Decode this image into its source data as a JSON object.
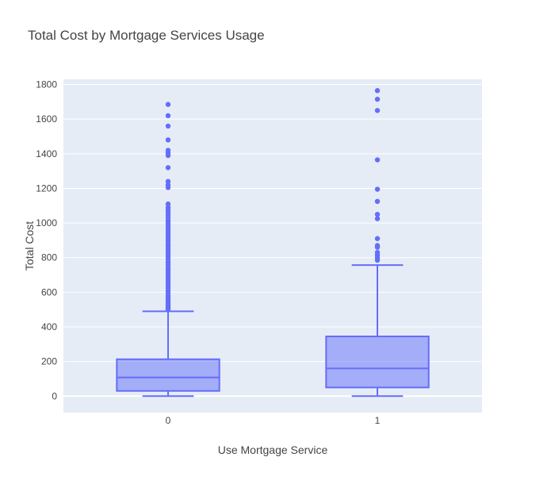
{
  "chart_data": {
    "type": "box",
    "title": "Total Cost by Mortgage Services Usage",
    "xlabel": "Use Mortgage Service",
    "ylabel": "Total Cost",
    "categories": [
      "0",
      "1"
    ],
    "ylim": [
      -95,
      1830
    ],
    "yticks": [
      0,
      200,
      400,
      600,
      800,
      1000,
      1200,
      1400,
      1600,
      1800
    ],
    "ytick_labels": [
      "0",
      "200",
      "400",
      "600",
      "800",
      "1000",
      "1200",
      "1400",
      "1600",
      "1800"
    ],
    "grid": true,
    "legend": "none",
    "series": [
      {
        "category": "0",
        "min": 0,
        "q1": 30,
        "median": 108,
        "q3": 213,
        "max": 490,
        "outliers": [
          500,
          510,
          520,
          530,
          540,
          550,
          560,
          570,
          580,
          595,
          610,
          625,
          640,
          655,
          670,
          685,
          700,
          715,
          730,
          745,
          760,
          775,
          790,
          805,
          820,
          835,
          850,
          865,
          880,
          895,
          910,
          925,
          940,
          955,
          970,
          985,
          1000,
          1015,
          1030,
          1045,
          1060,
          1075,
          1090,
          1110,
          1205,
          1220,
          1240,
          1320,
          1390,
          1405,
          1420,
          1480,
          1560,
          1620,
          1685
        ]
      },
      {
        "category": "1",
        "min": 0,
        "q1": 50,
        "median": 160,
        "q3": 345,
        "max": 757,
        "outliers": [
          785,
          800,
          815,
          830,
          860,
          870,
          910,
          1025,
          1050,
          1125,
          1195,
          1365,
          1650,
          1715,
          1765
        ]
      }
    ],
    "colors": {
      "box_line": "#636efa",
      "box_fill": "#636efa",
      "plot_bg": "#e5ecf6",
      "grid": "#ffffff",
      "text": "#444444",
      "title": "#444444"
    }
  }
}
